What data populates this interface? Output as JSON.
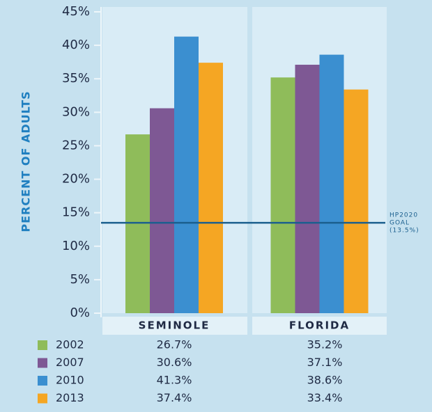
{
  "chart_data": {
    "type": "bar",
    "y_axis_label": "PERCENT OF ADULTS",
    "categories": [
      "SEMINOLE",
      "FLORIDA"
    ],
    "series": [
      {
        "name": "2002",
        "color": "#8fbc5a",
        "values": [
          26.7,
          35.2
        ],
        "value_labels": [
          "26.7%",
          "35.2%"
        ]
      },
      {
        "name": "2007",
        "color": "#7e5894",
        "values": [
          30.6,
          37.1
        ],
        "value_labels": [
          "30.6%",
          "37.1%"
        ]
      },
      {
        "name": "2010",
        "color": "#3b8fd0",
        "values": [
          41.3,
          38.6
        ],
        "value_labels": [
          "41.3%",
          "38.6%"
        ]
      },
      {
        "name": "2013",
        "color": "#f5a623",
        "values": [
          37.4,
          33.4
        ],
        "value_labels": [
          "37.4%",
          "33.4%"
        ]
      }
    ],
    "ylim": [
      0,
      45
    ],
    "yticks": [
      {
        "value": 0,
        "label": "0%"
      },
      {
        "value": 5,
        "label": "5%"
      },
      {
        "value": 10,
        "label": "10%"
      },
      {
        "value": 15,
        "label": "15%"
      },
      {
        "value": 20,
        "label": "20%"
      },
      {
        "value": 25,
        "label": "25%"
      },
      {
        "value": 30,
        "label": "30%"
      },
      {
        "value": 35,
        "label": "35%"
      },
      {
        "value": 40,
        "label": "40%"
      },
      {
        "value": 45,
        "label": "45%"
      }
    ],
    "goal_value": 13.5,
    "goal_annotation": [
      "HP2020",
      "GOAL",
      "(13.5%)"
    ],
    "goal_color": "#1b5f8e"
  }
}
